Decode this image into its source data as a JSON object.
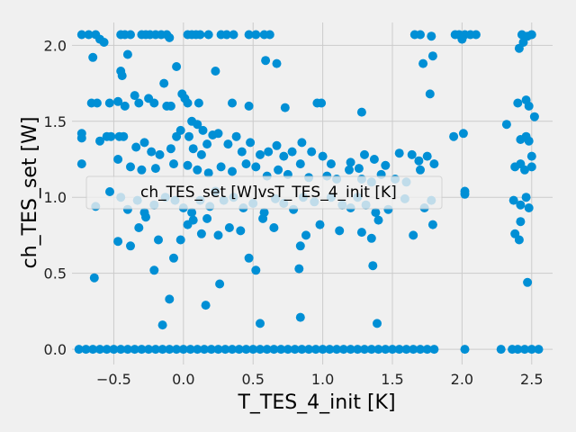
{
  "chart_data": {
    "type": "scatter",
    "title": "",
    "xlabel": "T_TES_4_init [K]",
    "ylabel": "ch_TES_set [W]",
    "xlim": [
      -0.8,
      2.65
    ],
    "ylim": [
      -0.1,
      2.15
    ],
    "xticks": [
      -0.5,
      0.0,
      0.5,
      1.0,
      1.5,
      2.0,
      2.5
    ],
    "xtick_labels": [
      "−0.5",
      "0.0",
      "0.5",
      "1.0",
      "1.5",
      "2.0",
      "2.5"
    ],
    "yticks": [
      0.0,
      0.5,
      1.0,
      1.5,
      2.0
    ],
    "ytick_labels": [
      "0.0",
      "0.5",
      "1.0",
      "1.5",
      "2.0"
    ],
    "grid": true,
    "legend": {
      "position": "center-left",
      "entries": [
        "ch_TES_set [W]vsT_TES_4_init [K]"
      ]
    },
    "colors": {
      "marker": "#008fd5",
      "background": "#f0f0f0",
      "grid": "#cbcbcb"
    },
    "series": [
      {
        "name": "ch_TES_set [W]vsT_TES_4_init [K]",
        "points": [
          [
            -0.73,
            2.07
          ],
          [
            -0.68,
            2.07
          ],
          [
            -0.63,
            2.07
          ],
          [
            -0.6,
            2.04
          ],
          [
            -0.57,
            2.02
          ],
          [
            -0.45,
            2.07
          ],
          [
            -0.42,
            2.07
          ],
          [
            -0.38,
            2.07
          ],
          [
            -0.3,
            2.07
          ],
          [
            -0.27,
            2.07
          ],
          [
            -0.24,
            2.07
          ],
          [
            -0.2,
            2.07
          ],
          [
            -0.16,
            2.07
          ],
          [
            -0.12,
            2.07
          ],
          [
            -0.1,
            2.05
          ],
          [
            0.03,
            2.07
          ],
          [
            0.06,
            2.07
          ],
          [
            0.09,
            2.07
          ],
          [
            0.12,
            2.07
          ],
          [
            0.18,
            2.07
          ],
          [
            0.27,
            2.07
          ],
          [
            0.31,
            2.07
          ],
          [
            0.36,
            2.07
          ],
          [
            0.47,
            2.07
          ],
          [
            0.52,
            2.07
          ],
          [
            0.58,
            2.07
          ],
          [
            0.62,
            2.07
          ],
          [
            1.66,
            2.07
          ],
          [
            1.7,
            2.07
          ],
          [
            1.78,
            2.06
          ],
          [
            1.95,
            2.07
          ],
          [
            1.98,
            2.07
          ],
          [
            2.02,
            2.07
          ],
          [
            2.06,
            2.07
          ],
          [
            2.1,
            2.07
          ],
          [
            2.43,
            2.07
          ],
          [
            2.47,
            2.06
          ],
          [
            2.5,
            2.07
          ],
          [
            2.44,
            2.02
          ],
          [
            2.41,
            1.98
          ],
          [
            -0.65,
            1.92
          ],
          [
            -0.4,
            1.94
          ],
          [
            -0.45,
            1.83
          ],
          [
            -0.44,
            1.8
          ],
          [
            -0.05,
            1.86
          ],
          [
            0.23,
            1.83
          ],
          [
            0.59,
            1.9
          ],
          [
            0.67,
            1.88
          ],
          [
            1.72,
            1.88
          ],
          [
            1.79,
            1.93
          ],
          [
            2.0,
            2.04
          ],
          [
            -0.73,
            1.42
          ],
          [
            -0.73,
            1.39
          ],
          [
            -0.73,
            1.22
          ],
          [
            -0.66,
            1.62
          ],
          [
            -0.62,
            1.62
          ],
          [
            -0.53,
            1.62
          ],
          [
            -0.47,
            1.63
          ],
          [
            -0.42,
            1.6
          ],
          [
            -0.35,
            1.67
          ],
          [
            -0.32,
            1.62
          ],
          [
            -0.25,
            1.65
          ],
          [
            -0.21,
            1.62
          ],
          [
            -0.14,
            1.75
          ],
          [
            -0.12,
            1.6
          ],
          [
            -0.09,
            1.6
          ],
          [
            -0.01,
            1.68
          ],
          [
            0.01,
            1.65
          ],
          [
            0.03,
            1.62
          ],
          [
            0.06,
            1.5
          ],
          [
            0.11,
            1.62
          ],
          [
            0.1,
            1.48
          ],
          [
            0.14,
            1.44
          ],
          [
            0.35,
            1.62
          ],
          [
            0.47,
            1.6
          ],
          [
            0.73,
            1.59
          ],
          [
            0.96,
            1.62
          ],
          [
            0.99,
            1.62
          ],
          [
            1.28,
            1.56
          ],
          [
            1.77,
            1.68
          ],
          [
            2.4,
            1.62
          ],
          [
            2.46,
            1.64
          ],
          [
            2.48,
            1.6
          ],
          [
            -0.6,
            1.37
          ],
          [
            -0.55,
            1.4
          ],
          [
            -0.52,
            1.4
          ],
          [
            -0.46,
            1.4
          ],
          [
            -0.43,
            1.4
          ],
          [
            -0.34,
            1.33
          ],
          [
            -0.28,
            1.36
          ],
          [
            -0.23,
            1.3
          ],
          [
            -0.17,
            1.28
          ],
          [
            -0.09,
            1.32
          ],
          [
            -0.05,
            1.4
          ],
          [
            -0.02,
            1.44
          ],
          [
            0.04,
            1.4
          ],
          [
            0.07,
            1.32
          ],
          [
            0.13,
            1.28
          ],
          [
            0.17,
            1.35
          ],
          [
            0.21,
            1.41
          ],
          [
            0.25,
            1.42
          ],
          [
            0.32,
            1.35
          ],
          [
            0.38,
            1.4
          ],
          [
            0.42,
            1.3
          ],
          [
            0.48,
            1.36
          ],
          [
            0.55,
            1.28
          ],
          [
            0.61,
            1.3
          ],
          [
            0.67,
            1.34
          ],
          [
            0.72,
            1.27
          ],
          [
            0.78,
            1.3
          ],
          [
            0.85,
            1.36
          ],
          [
            0.92,
            1.3
          ],
          [
            1.0,
            1.27
          ],
          [
            1.06,
            1.22
          ],
          [
            1.2,
            1.23
          ],
          [
            1.26,
            1.19
          ],
          [
            1.3,
            1.28
          ],
          [
            1.37,
            1.25
          ],
          [
            1.45,
            1.21
          ],
          [
            1.55,
            1.29
          ],
          [
            1.64,
            1.28
          ],
          [
            1.69,
            1.24
          ],
          [
            1.75,
            1.27
          ],
          [
            2.32,
            1.48
          ],
          [
            2.42,
            1.38
          ],
          [
            2.46,
            1.4
          ],
          [
            2.48,
            1.37
          ],
          [
            2.52,
            1.53
          ],
          [
            2.5,
            1.27
          ],
          [
            1.94,
            1.4
          ],
          [
            2.01,
            1.42
          ],
          [
            -0.47,
            1.25
          ],
          [
            -0.38,
            1.2
          ],
          [
            -0.3,
            1.18
          ],
          [
            -0.2,
            1.19
          ],
          [
            -0.07,
            1.22
          ],
          [
            0.03,
            1.21
          ],
          [
            0.1,
            1.18
          ],
          [
            0.18,
            1.16
          ],
          [
            0.27,
            1.2
          ],
          [
            0.35,
            1.17
          ],
          [
            0.45,
            1.22
          ],
          [
            0.52,
            1.2
          ],
          [
            0.6,
            1.14
          ],
          [
            0.68,
            1.18
          ],
          [
            0.75,
            1.15
          ],
          [
            0.84,
            1.22
          ],
          [
            0.9,
            1.13
          ],
          [
            1.03,
            1.14
          ],
          [
            1.1,
            1.12
          ],
          [
            1.19,
            1.18
          ],
          [
            1.28,
            1.12
          ],
          [
            1.35,
            1.1
          ],
          [
            1.42,
            1.15
          ],
          [
            1.52,
            1.12
          ],
          [
            1.6,
            1.1
          ],
          [
            1.7,
            1.18
          ],
          [
            1.8,
            1.22
          ],
          [
            2.38,
            1.2
          ],
          [
            2.42,
            1.22
          ],
          [
            2.45,
            1.18
          ],
          [
            2.5,
            1.2
          ],
          [
            -0.63,
            0.94
          ],
          [
            -0.45,
            1.0
          ],
          [
            -0.4,
            0.92
          ],
          [
            -0.33,
            0.98
          ],
          [
            -0.28,
            0.9
          ],
          [
            -0.21,
            0.95
          ],
          [
            -0.13,
            1.0
          ],
          [
            -0.06,
            0.98
          ],
          [
            0.0,
            0.93
          ],
          [
            0.06,
            0.9
          ],
          [
            0.12,
            0.98
          ],
          [
            0.19,
            0.94
          ],
          [
            0.23,
            1.04
          ],
          [
            0.29,
            0.98
          ],
          [
            0.36,
            1.0
          ],
          [
            0.43,
            0.93
          ],
          [
            0.5,
            0.96
          ],
          [
            0.58,
            0.9
          ],
          [
            0.66,
            0.99
          ],
          [
            0.72,
            0.96
          ],
          [
            0.79,
            0.92
          ],
          [
            0.86,
            1.0
          ],
          [
            0.94,
            0.97
          ],
          [
            1.06,
            1.0
          ],
          [
            1.14,
            0.95
          ],
          [
            1.2,
            0.93
          ],
          [
            1.25,
            1.0
          ],
          [
            1.31,
            0.95
          ],
          [
            1.38,
            0.9
          ],
          [
            1.47,
            0.92
          ],
          [
            1.59,
            0.99
          ],
          [
            1.73,
            0.93
          ],
          [
            1.78,
            0.98
          ],
          [
            2.02,
            1.04
          ],
          [
            2.02,
            1.02
          ],
          [
            2.37,
            0.98
          ],
          [
            2.42,
            0.95
          ],
          [
            2.46,
            1.0
          ],
          [
            2.48,
            0.93
          ],
          [
            -0.47,
            0.71
          ],
          [
            -0.38,
            0.68
          ],
          [
            -0.32,
            0.8
          ],
          [
            -0.27,
            0.87
          ],
          [
            -0.18,
            0.72
          ],
          [
            -0.07,
            0.6
          ],
          [
            -0.02,
            0.72
          ],
          [
            0.03,
            0.82
          ],
          [
            0.07,
            0.85
          ],
          [
            0.13,
            0.76
          ],
          [
            0.17,
            0.86
          ],
          [
            0.25,
            0.75
          ],
          [
            0.33,
            0.8
          ],
          [
            0.41,
            0.78
          ],
          [
            0.47,
            0.6
          ],
          [
            0.52,
            0.52
          ],
          [
            0.57,
            0.86
          ],
          [
            0.65,
            0.8
          ],
          [
            0.84,
            0.68
          ],
          [
            0.88,
            0.75
          ],
          [
            0.98,
            0.82
          ],
          [
            1.12,
            0.78
          ],
          [
            1.28,
            0.77
          ],
          [
            1.35,
            0.73
          ],
          [
            1.4,
            0.85
          ],
          [
            1.65,
            0.75
          ],
          [
            1.79,
            0.82
          ],
          [
            2.38,
            0.76
          ],
          [
            2.41,
            0.72
          ],
          [
            2.42,
            0.84
          ],
          [
            -0.64,
            0.47
          ],
          [
            -0.21,
            0.52
          ],
          [
            -0.1,
            0.33
          ],
          [
            -0.15,
            0.16
          ],
          [
            0.16,
            0.29
          ],
          [
            0.26,
            0.43
          ],
          [
            0.55,
            0.17
          ],
          [
            0.83,
            0.53
          ],
          [
            0.84,
            0.21
          ],
          [
            1.36,
            0.55
          ],
          [
            1.39,
            0.17
          ],
          [
            2.47,
            0.44
          ],
          [
            -0.75,
            0.0
          ],
          [
            -0.7,
            0.0
          ],
          [
            -0.65,
            0.0
          ],
          [
            -0.6,
            0.0
          ],
          [
            -0.55,
            0.0
          ],
          [
            -0.5,
            0.0
          ],
          [
            -0.45,
            0.0
          ],
          [
            -0.4,
            0.0
          ],
          [
            -0.35,
            0.0
          ],
          [
            -0.3,
            0.0
          ],
          [
            -0.25,
            0.0
          ],
          [
            -0.2,
            0.0
          ],
          [
            -0.15,
            0.0
          ],
          [
            -0.1,
            0.0
          ],
          [
            -0.05,
            0.0
          ],
          [
            0.0,
            0.0
          ],
          [
            0.05,
            0.0
          ],
          [
            0.1,
            0.0
          ],
          [
            0.15,
            0.0
          ],
          [
            0.2,
            0.0
          ],
          [
            0.25,
            0.0
          ],
          [
            0.3,
            0.0
          ],
          [
            0.35,
            0.0
          ],
          [
            0.4,
            0.0
          ],
          [
            0.45,
            0.0
          ],
          [
            0.5,
            0.0
          ],
          [
            0.55,
            0.0
          ],
          [
            0.6,
            0.0
          ],
          [
            0.65,
            0.0
          ],
          [
            0.7,
            0.0
          ],
          [
            0.75,
            0.0
          ],
          [
            0.8,
            0.0
          ],
          [
            0.85,
            0.0
          ],
          [
            0.9,
            0.0
          ],
          [
            0.95,
            0.0
          ],
          [
            1.0,
            0.0
          ],
          [
            1.05,
            0.0
          ],
          [
            1.1,
            0.0
          ],
          [
            1.15,
            0.0
          ],
          [
            1.2,
            0.0
          ],
          [
            1.25,
            0.0
          ],
          [
            1.3,
            0.0
          ],
          [
            1.35,
            0.0
          ],
          [
            1.4,
            0.0
          ],
          [
            1.45,
            0.0
          ],
          [
            1.5,
            0.0
          ],
          [
            1.55,
            0.0
          ],
          [
            1.6,
            0.0
          ],
          [
            1.65,
            0.0
          ],
          [
            1.7,
            0.0
          ],
          [
            1.75,
            0.0
          ],
          [
            1.8,
            0.0
          ],
          [
            2.02,
            0.0
          ],
          [
            2.28,
            0.0
          ],
          [
            2.36,
            0.0
          ],
          [
            2.4,
            0.0
          ],
          [
            2.45,
            0.0
          ],
          [
            2.5,
            0.0
          ],
          [
            2.55,
            0.0
          ]
        ]
      }
    ]
  }
}
